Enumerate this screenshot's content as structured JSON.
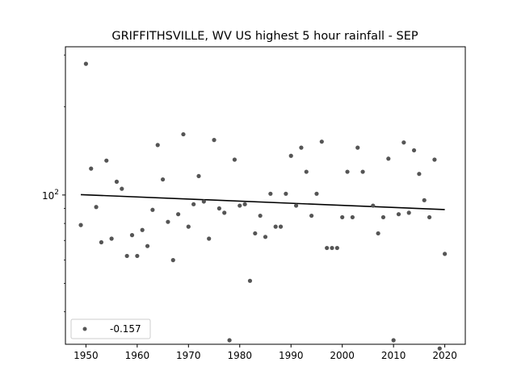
{
  "chart_data": {
    "type": "scatter",
    "title": "GRIFFITHSVILLE, WV US highest 5 hour rainfall - SEP",
    "xlabel": "",
    "ylabel": "",
    "xlim": [
      1946,
      2024
    ],
    "ylim": [
      31,
      320
    ],
    "yscale": "log",
    "xticks": [
      1950,
      1960,
      1970,
      1980,
      1990,
      2000,
      2010,
      2020
    ],
    "yticks": [
      {
        "value": 100,
        "base": "10",
        "exp": "2"
      }
    ],
    "grid": false,
    "legend": {
      "location": "lower left",
      "entries": [
        {
          "label": "-0.157",
          "marker": "dot"
        }
      ]
    },
    "colors": {
      "points": "#555555",
      "trend": "#000000"
    },
    "series": [
      {
        "name": "-0.157",
        "x": [
          1949,
          1950,
          1951,
          1952,
          1953,
          1954,
          1955,
          1956,
          1957,
          1958,
          1959,
          1960,
          1961,
          1962,
          1963,
          1964,
          1965,
          1966,
          1967,
          1968,
          1969,
          1970,
          1971,
          1972,
          1973,
          1974,
          1975,
          1976,
          1977,
          1978,
          1979,
          1980,
          1981,
          1982,
          1983,
          1984,
          1985,
          1986,
          1987,
          1988,
          1989,
          1990,
          1991,
          1992,
          1993,
          1994,
          1995,
          1996,
          1997,
          1998,
          1999,
          2000,
          2001,
          2002,
          2003,
          2004,
          2006,
          2007,
          2008,
          2009,
          2010,
          2011,
          2012,
          2013,
          2014,
          2015,
          2016,
          2017,
          2018,
          2019,
          2020
        ],
        "y": [
          79,
          280,
          123,
          91,
          69,
          131,
          71,
          111,
          105,
          62,
          73,
          62,
          76,
          67,
          89,
          148,
          113,
          81,
          60,
          86,
          161,
          78,
          93,
          116,
          95,
          71,
          154,
          90,
          87,
          32,
          132,
          92,
          93,
          51,
          74,
          85,
          72,
          101,
          78,
          78,
          101,
          136,
          92,
          145,
          120,
          85,
          101,
          152,
          66,
          66,
          66,
          84,
          120,
          84,
          145,
          120,
          92,
          74,
          84,
          133,
          32,
          86,
          151,
          87,
          142,
          118,
          96,
          84,
          132,
          30,
          63
        ]
      }
    ],
    "trend": {
      "x": [
        1949,
        2020
      ],
      "y": [
        100.3,
        89.2
      ]
    }
  }
}
